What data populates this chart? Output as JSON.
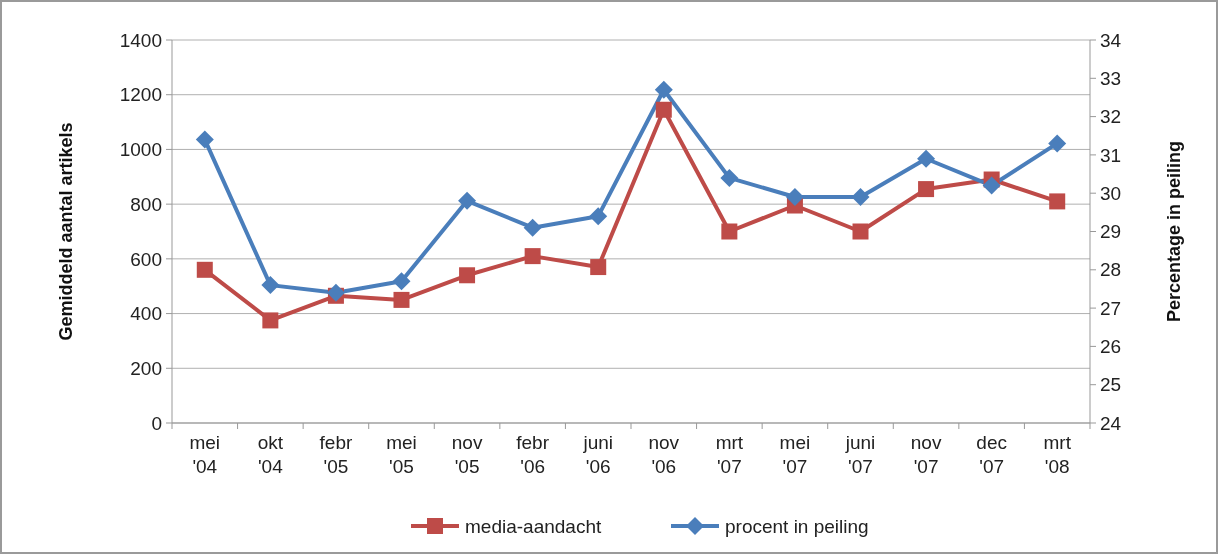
{
  "chart_data": {
    "type": "line",
    "categories": [
      "mei '04",
      "okt '04",
      "febr '05",
      "mei '05",
      "nov '05",
      "febr '06",
      "juni '06",
      "nov '06",
      "mrt '07",
      "mei '07",
      "juni '07",
      "nov '07",
      "dec '07",
      "mrt '08"
    ],
    "series": [
      {
        "name": "media-aandacht",
        "color": "#be4b48",
        "marker": "square",
        "values": [
          560,
          375,
          465,
          450,
          540,
          610,
          570,
          1145,
          700,
          795,
          700,
          855,
          890,
          810
        ]
      },
      {
        "name": "procent in peiling",
        "color": "#4a7ebb",
        "marker": "diamond",
        "axis": "y2",
        "values": [
          31.4,
          27.6,
          27.4,
          27.7,
          29.8,
          29.1,
          29.4,
          32.7,
          30.4,
          29.9,
          29.9,
          30.9,
          30.2,
          31.3
        ]
      }
    ],
    "ylabel": "Gemiddeld aantal artikels",
    "y2label": "Percentage in peiling",
    "ylim": [
      0,
      1400
    ],
    "yticks": [
      0,
      200,
      400,
      600,
      800,
      1000,
      1200,
      1400
    ],
    "y2lim": [
      24,
      34
    ],
    "y2ticks": [
      24,
      25,
      26,
      27,
      28,
      29,
      30,
      31,
      32,
      33,
      34
    ],
    "grid": "y",
    "legend": "bottom",
    "line_style": "solid"
  }
}
